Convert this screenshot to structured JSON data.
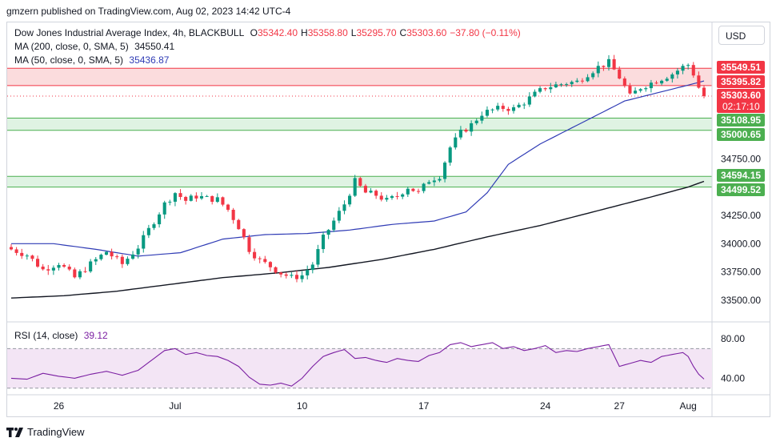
{
  "credit": "gmzern published on TradingView.com, Aug 02, 2023 14:42 UTC-4",
  "legend": {
    "title": "Dow Jones Industrial Average Index, 4h, BLACKBULL",
    "o_label": "O",
    "o": "35342.40",
    "h_label": "H",
    "h": "35358.80",
    "l_label": "L",
    "l": "35295.70",
    "c_label": "C",
    "c": "35303.60",
    "change": "−37.80 (−0.11%)",
    "ma200_label": "MA (200, close, 0, SMA, 5)",
    "ma200_value": "34550.41",
    "ma50_label": "MA (50, close, 0, SMA, 5)",
    "ma50_value": "35436.87",
    "rsi_label": "RSI (14, close)",
    "rsi_value": "39.12"
  },
  "currency_button": "USD",
  "footer_brand": "TradingView",
  "colors": {
    "up": "#089981",
    "down": "#f23645",
    "ma50": "#2f3bb5",
    "ma200": "#131722",
    "rsi": "#7b1fa2",
    "rsi_band": "#f3e5f5",
    "zone_red": "#fbdcdd",
    "zone_green": "#dff3e3",
    "label_red": "#f23645",
    "label_green": "#4caf50"
  },
  "chart_data": {
    "type": "candlestick",
    "price_axis": {
      "ticks": [
        33500,
        33750,
        34000,
        34250,
        34750
      ],
      "tick_labels": [
        "33500.00",
        "33750.00",
        "34000.00",
        "34250.00",
        "34750.00"
      ]
    },
    "time_axis": {
      "labels": [
        "26",
        "Jul",
        "10",
        "17",
        "24",
        "27",
        "Aug"
      ],
      "label_index": [
        9,
        31,
        55,
        78,
        101,
        115,
        128
      ]
    },
    "zones": [
      {
        "color": "red",
        "top": 35549.51,
        "bottom": 35395.82
      },
      {
        "color": "green",
        "top": 35108.95,
        "bottom": 35000.65
      },
      {
        "color": "green",
        "top": 34594.15,
        "bottom": 34499.52
      }
    ],
    "price_labels": [
      {
        "text": "35549.51",
        "value": 35549.51,
        "color": "red"
      },
      {
        "text": "35395.82",
        "value": 35395.82,
        "color": "red"
      },
      {
        "text": "35303.60",
        "value": 35303.6,
        "color": "red",
        "countdown": "02:17:10"
      },
      {
        "text": "35108.95",
        "value": 35108.95,
        "color": "green"
      },
      {
        "text": "35000.65",
        "value": 35000.65,
        "color": "green"
      },
      {
        "text": "34594.15",
        "value": 34594.15,
        "color": "green"
      },
      {
        "text": "34499.52",
        "value": 34499.52,
        "color": "green"
      }
    ],
    "close_anchors": [
      [
        0,
        33950
      ],
      [
        3,
        33900
      ],
      [
        6,
        33770
      ],
      [
        9,
        33830
      ],
      [
        12,
        33700
      ],
      [
        15,
        33820
      ],
      [
        18,
        33930
      ],
      [
        21,
        33820
      ],
      [
        24,
        33970
      ],
      [
        27,
        34200
      ],
      [
        29,
        34350
      ],
      [
        31,
        34450
      ],
      [
        33,
        34380
      ],
      [
        35,
        34420
      ],
      [
        37,
        34400
      ],
      [
        39,
        34390
      ],
      [
        41,
        34300
      ],
      [
        43,
        34150
      ],
      [
        45,
        33950
      ],
      [
        47,
        33850
      ],
      [
        49,
        33800
      ],
      [
        51,
        33740
      ],
      [
        53,
        33700
      ],
      [
        55,
        33720
      ],
      [
        57,
        33820
      ],
      [
        59,
        34050
      ],
      [
        61,
        34200
      ],
      [
        63,
        34350
      ],
      [
        65,
        34550
      ],
      [
        67,
        34450
      ],
      [
        69,
        34430
      ],
      [
        71,
        34380
      ],
      [
        73,
        34420
      ],
      [
        75,
        34500
      ],
      [
        77,
        34450
      ],
      [
        79,
        34560
      ],
      [
        81,
        34600
      ],
      [
        83,
        34850
      ],
      [
        85,
        34980
      ],
      [
        87,
        35050
      ],
      [
        89,
        35150
      ],
      [
        91,
        35180
      ],
      [
        93,
        35200
      ],
      [
        95,
        35190
      ],
      [
        97,
        35250
      ],
      [
        99,
        35320
      ],
      [
        101,
        35380
      ],
      [
        103,
        35400
      ],
      [
        105,
        35420
      ],
      [
        107,
        35430
      ],
      [
        109,
        35500
      ],
      [
        111,
        35560
      ],
      [
        113,
        35600
      ],
      [
        115,
        35470
      ],
      [
        117,
        35300
      ],
      [
        119,
        35380
      ],
      [
        121,
        35420
      ],
      [
        123,
        35460
      ],
      [
        125,
        35500
      ],
      [
        127,
        35560
      ],
      [
        128,
        35580
      ],
      [
        129,
        35500
      ],
      [
        130,
        35380
      ],
      [
        131,
        35303.6
      ]
    ],
    "ma50": [
      [
        0,
        34000
      ],
      [
        8,
        34000
      ],
      [
        16,
        33950
      ],
      [
        24,
        33890
      ],
      [
        32,
        33920
      ],
      [
        40,
        34040
      ],
      [
        48,
        34080
      ],
      [
        56,
        34090
      ],
      [
        64,
        34120
      ],
      [
        72,
        34170
      ],
      [
        80,
        34200
      ],
      [
        86,
        34280
      ],
      [
        90,
        34450
      ],
      [
        94,
        34700
      ],
      [
        100,
        34880
      ],
      [
        108,
        35070
      ],
      [
        116,
        35260
      ],
      [
        122,
        35330
      ],
      [
        128,
        35400
      ],
      [
        131,
        35436.87
      ]
    ],
    "ma200": [
      [
        0,
        33520
      ],
      [
        10,
        33540
      ],
      [
        20,
        33580
      ],
      [
        30,
        33640
      ],
      [
        40,
        33700
      ],
      [
        50,
        33740
      ],
      [
        60,
        33790
      ],
      [
        70,
        33860
      ],
      [
        80,
        33950
      ],
      [
        90,
        34060
      ],
      [
        100,
        34160
      ],
      [
        110,
        34280
      ],
      [
        120,
        34400
      ],
      [
        128,
        34500
      ],
      [
        131,
        34550.41
      ]
    ],
    "rsi": {
      "levels": [
        70,
        30
      ],
      "tick_labels": [
        "80.00",
        "40.00"
      ],
      "tick_values": [
        80,
        40
      ],
      "points": [
        [
          0,
          40
        ],
        [
          3,
          39
        ],
        [
          6,
          45
        ],
        [
          9,
          42
        ],
        [
          12,
          40
        ],
        [
          15,
          44
        ],
        [
          18,
          47
        ],
        [
          21,
          43
        ],
        [
          24,
          48
        ],
        [
          27,
          60
        ],
        [
          29,
          68
        ],
        [
          31,
          70
        ],
        [
          33,
          64
        ],
        [
          35,
          66
        ],
        [
          37,
          63
        ],
        [
          39,
          62
        ],
        [
          41,
          58
        ],
        [
          43,
          52
        ],
        [
          45,
          41
        ],
        [
          47,
          34
        ],
        [
          49,
          33
        ],
        [
          51,
          35
        ],
        [
          53,
          32
        ],
        [
          55,
          40
        ],
        [
          57,
          52
        ],
        [
          59,
          62
        ],
        [
          61,
          66
        ],
        [
          63,
          69
        ],
        [
          65,
          60
        ],
        [
          67,
          61
        ],
        [
          69,
          58
        ],
        [
          71,
          56
        ],
        [
          73,
          60
        ],
        [
          75,
          58
        ],
        [
          77,
          57
        ],
        [
          79,
          63
        ],
        [
          81,
          66
        ],
        [
          83,
          74
        ],
        [
          85,
          76
        ],
        [
          87,
          72
        ],
        [
          89,
          74
        ],
        [
          91,
          76
        ],
        [
          93,
          70
        ],
        [
          95,
          72
        ],
        [
          97,
          68
        ],
        [
          99,
          70
        ],
        [
          101,
          73
        ],
        [
          103,
          66
        ],
        [
          105,
          68
        ],
        [
          107,
          67
        ],
        [
          109,
          70
        ],
        [
          111,
          72
        ],
        [
          113,
          74
        ],
        [
          115,
          52
        ],
        [
          117,
          55
        ],
        [
          119,
          58
        ],
        [
          121,
          56
        ],
        [
          123,
          62
        ],
        [
          125,
          64
        ],
        [
          127,
          66
        ],
        [
          128,
          62
        ],
        [
          129,
          52
        ],
        [
          130,
          44
        ],
        [
          131,
          39.12
        ]
      ]
    }
  }
}
